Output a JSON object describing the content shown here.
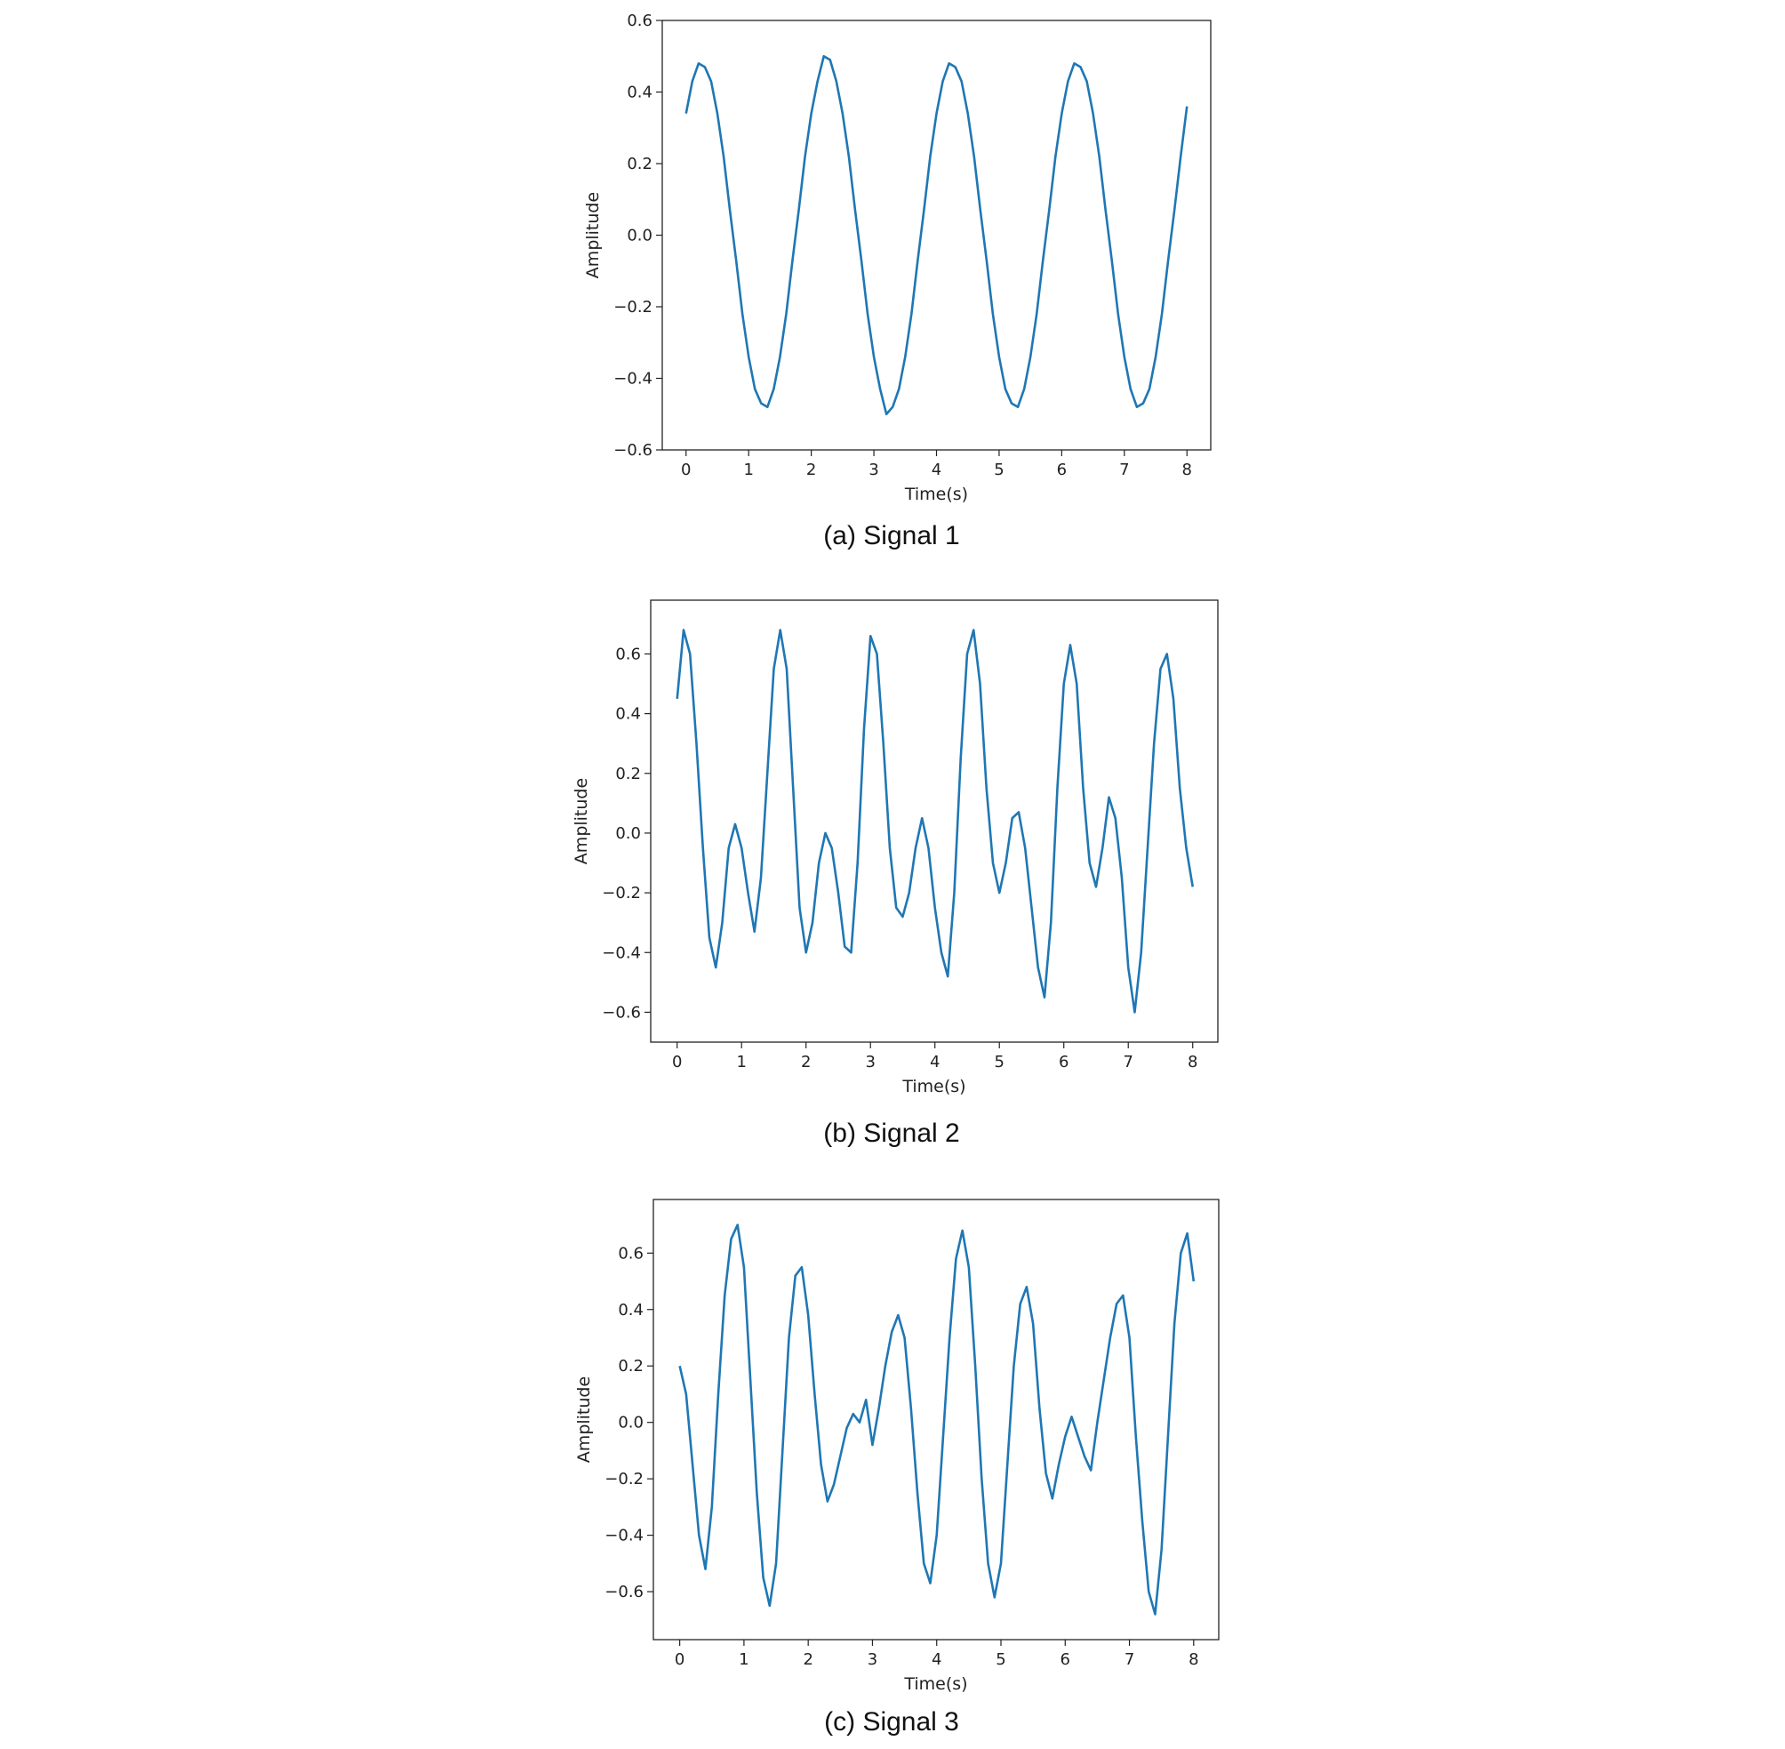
{
  "chart_data": [
    {
      "type": "line",
      "caption": "(a) Signal 1",
      "xlabel": "Time(s)",
      "ylabel": "Amplitude",
      "color": "#1f77b4",
      "x": [
        0,
        0.1,
        0.2,
        0.3,
        0.4,
        0.5,
        0.6,
        0.7,
        0.8,
        0.9,
        1,
        1.1,
        1.2,
        1.3,
        1.4,
        1.5,
        1.6,
        1.7,
        1.8,
        1.9,
        2,
        2.1,
        2.2,
        2.3,
        2.4,
        2.5,
        2.6,
        2.7,
        2.8,
        2.9,
        3,
        3.1,
        3.2,
        3.3,
        3.4,
        3.5,
        3.6,
        3.7,
        3.8,
        3.9,
        4,
        4.1,
        4.2,
        4.3,
        4.4,
        4.5,
        4.6,
        4.7,
        4.8,
        4.9,
        5,
        5.1,
        5.2,
        5.3,
        5.4,
        5.5,
        5.6,
        5.7,
        5.8,
        5.9,
        6,
        6.1,
        6.2,
        6.3,
        6.4,
        6.5,
        6.6,
        6.7,
        6.8,
        6.9,
        7,
        7.1,
        7.2,
        7.3,
        7.4,
        7.5,
        7.6,
        7.7,
        7.8,
        7.9,
        8
      ],
      "values": [
        0.34,
        0.43,
        0.48,
        0.47,
        0.43,
        0.34,
        0.22,
        0.07,
        -0.07,
        -0.22,
        -0.34,
        -0.43,
        -0.47,
        -0.48,
        -0.43,
        -0.34,
        -0.22,
        -0.07,
        0.07,
        0.22,
        0.34,
        0.43,
        0.5,
        0.49,
        0.43,
        0.34,
        0.22,
        0.07,
        -0.07,
        -0.22,
        -0.34,
        -0.43,
        -0.5,
        -0.48,
        -0.43,
        -0.34,
        -0.22,
        -0.07,
        0.07,
        0.22,
        0.34,
        0.43,
        0.48,
        0.47,
        0.43,
        0.34,
        0.22,
        0.07,
        -0.07,
        -0.22,
        -0.34,
        -0.43,
        -0.47,
        -0.48,
        -0.43,
        -0.34,
        -0.22,
        -0.07,
        0.07,
        0.22,
        0.34,
        0.43,
        0.48,
        0.47,
        0.43,
        0.34,
        0.22,
        0.07,
        -0.07,
        -0.22,
        -0.34,
        -0.43,
        -0.48,
        -0.47,
        -0.43,
        -0.34,
        -0.22,
        -0.07,
        0.07,
        0.22,
        0.36
      ],
      "xlim": [
        -0.38,
        8.38
      ],
      "ylim": [
        -0.6,
        0.6
      ],
      "xticks": [
        0,
        1,
        2,
        3,
        4,
        5,
        6,
        7,
        8
      ],
      "yticks": [
        {
          "value": -0.6,
          "label": "−0.6"
        },
        {
          "value": -0.4,
          "label": "−0.4"
        },
        {
          "value": -0.2,
          "label": "−0.2"
        },
        {
          "value": 0,
          "label": "0.0"
        },
        0.2,
        0.4,
        0.6
      ]
    },
    {
      "type": "line",
      "caption": "(b) Signal 2",
      "xlabel": "Time(s)",
      "ylabel": "Amplitude",
      "color": "#1f77b4",
      "x": [
        0,
        0.1,
        0.2,
        0.3,
        0.4,
        0.5,
        0.6,
        0.7,
        0.8,
        0.9,
        1,
        1.1,
        1.2,
        1.3,
        1.4,
        1.5,
        1.6,
        1.7,
        1.8,
        1.9,
        2,
        2.1,
        2.2,
        2.3,
        2.4,
        2.5,
        2.6,
        2.7,
        2.8,
        2.9,
        3,
        3.1,
        3.2,
        3.3,
        3.4,
        3.5,
        3.6,
        3.7,
        3.8,
        3.9,
        4,
        4.1,
        4.2,
        4.3,
        4.4,
        4.5,
        4.6,
        4.7,
        4.8,
        4.9,
        5,
        5.1,
        5.2,
        5.3,
        5.4,
        5.5,
        5.6,
        5.7,
        5.8,
        5.9,
        6,
        6.1,
        6.2,
        6.3,
        6.4,
        6.5,
        6.6,
        6.7,
        6.8,
        6.9,
        7,
        7.1,
        7.2,
        7.3,
        7.4,
        7.5,
        7.6,
        7.7,
        7.8,
        7.9,
        8
      ],
      "values": [
        0.45,
        0.68,
        0.6,
        0.3,
        -0.05,
        -0.35,
        -0.45,
        -0.3,
        -0.05,
        0.03,
        -0.05,
        -0.2,
        -0.33,
        -0.15,
        0.2,
        0.55,
        0.68,
        0.55,
        0.15,
        -0.25,
        -0.4,
        -0.3,
        -0.1,
        0.0,
        -0.05,
        -0.2,
        -0.38,
        -0.4,
        -0.1,
        0.35,
        0.66,
        0.6,
        0.3,
        -0.05,
        -0.25,
        -0.28,
        -0.2,
        -0.05,
        0.05,
        -0.05,
        -0.25,
        -0.4,
        -0.48,
        -0.2,
        0.25,
        0.6,
        0.68,
        0.5,
        0.15,
        -0.1,
        -0.2,
        -0.1,
        0.05,
        0.07,
        -0.05,
        -0.25,
        -0.45,
        -0.55,
        -0.3,
        0.15,
        0.5,
        0.63,
        0.5,
        0.15,
        -0.1,
        -0.18,
        -0.05,
        0.12,
        0.05,
        -0.15,
        -0.45,
        -0.6,
        -0.4,
        -0.05,
        0.3,
        0.55,
        0.6,
        0.45,
        0.15,
        -0.05,
        -0.18
      ],
      "xlim": [
        -0.41,
        8.39
      ],
      "ylim": [
        -0.7,
        0.78
      ],
      "xticks": [
        0,
        1,
        2,
        3,
        4,
        5,
        6,
        7,
        8
      ],
      "yticks": [
        {
          "value": -0.6,
          "label": "−0.6"
        },
        {
          "value": -0.4,
          "label": "−0.4"
        },
        {
          "value": -0.2,
          "label": "−0.2"
        },
        {
          "value": 0,
          "label": "0.0"
        },
        0.2,
        0.4,
        0.6
      ]
    },
    {
      "type": "line",
      "caption": "(c) Signal 3",
      "xlabel": "Time(s)",
      "ylabel": "Amplitude",
      "color": "#1f77b4",
      "x": [
        0,
        0.1,
        0.2,
        0.3,
        0.4,
        0.5,
        0.6,
        0.7,
        0.8,
        0.9,
        1,
        1.1,
        1.2,
        1.3,
        1.4,
        1.5,
        1.6,
        1.7,
        1.8,
        1.9,
        2,
        2.1,
        2.2,
        2.3,
        2.4,
        2.5,
        2.6,
        2.7,
        2.8,
        2.9,
        3,
        3.1,
        3.2,
        3.3,
        3.4,
        3.5,
        3.6,
        3.7,
        3.8,
        3.9,
        4,
        4.1,
        4.2,
        4.3,
        4.4,
        4.5,
        4.6,
        4.7,
        4.8,
        4.9,
        5,
        5.1,
        5.2,
        5.3,
        5.4,
        5.5,
        5.6,
        5.7,
        5.8,
        5.9,
        6,
        6.1,
        6.2,
        6.3,
        6.4,
        6.5,
        6.6,
        6.7,
        6.8,
        6.9,
        7,
        7.1,
        7.2,
        7.3,
        7.4,
        7.5,
        7.6,
        7.7,
        7.8,
        7.9,
        8
      ],
      "values": [
        0.2,
        0.1,
        -0.15,
        -0.4,
        -0.52,
        -0.3,
        0.1,
        0.45,
        0.65,
        0.7,
        0.55,
        0.15,
        -0.25,
        -0.55,
        -0.65,
        -0.5,
        -0.1,
        0.3,
        0.52,
        0.55,
        0.38,
        0.1,
        -0.15,
        -0.28,
        -0.22,
        -0.12,
        -0.02,
        0.03,
        0.0,
        0.08,
        -0.08,
        0.05,
        0.2,
        0.32,
        0.38,
        0.3,
        0.05,
        -0.25,
        -0.5,
        -0.57,
        -0.4,
        -0.05,
        0.3,
        0.58,
        0.68,
        0.55,
        0.2,
        -0.2,
        -0.5,
        -0.62,
        -0.5,
        -0.15,
        0.2,
        0.42,
        0.48,
        0.35,
        0.05,
        -0.18,
        -0.27,
        -0.15,
        -0.05,
        0.02,
        -0.05,
        -0.12,
        -0.17,
        0.0,
        0.15,
        0.3,
        0.42,
        0.45,
        0.3,
        -0.05,
        -0.35,
        -0.6,
        -0.68,
        -0.45,
        -0.05,
        0.35,
        0.6,
        0.67,
        0.5
      ],
      "xlim": [
        -0.41,
        8.39
      ],
      "ylim": [
        -0.77,
        0.79
      ],
      "xticks": [
        0,
        1,
        2,
        3,
        4,
        5,
        6,
        7,
        8
      ],
      "yticks": [
        {
          "value": -0.6,
          "label": "−0.6"
        },
        {
          "value": -0.4,
          "label": "−0.4"
        },
        {
          "value": -0.2,
          "label": "−0.2"
        },
        {
          "value": 0,
          "label": "0.0"
        },
        0.2,
        0.4,
        0.6
      ]
    }
  ]
}
